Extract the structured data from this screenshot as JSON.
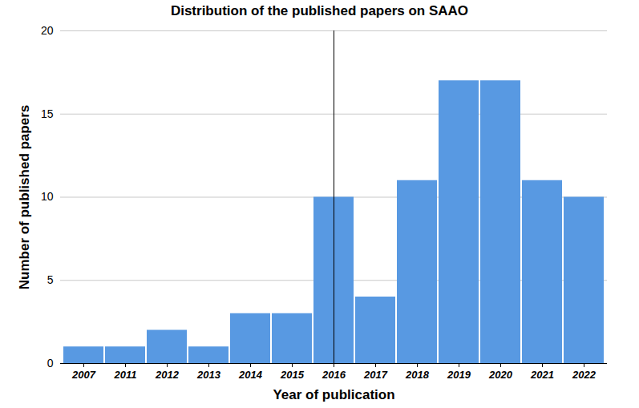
{
  "chart_data": {
    "type": "bar",
    "title": "Distribution of the published papers on SAAO",
    "x_label": "Year of publication",
    "y_label": "Number of published papers",
    "categories": [
      "2007",
      "2011",
      "2012",
      "2013",
      "2014",
      "2015",
      "2016",
      "2017",
      "2018",
      "2019",
      "2020",
      "2021",
      "2022"
    ],
    "values": [
      1,
      1,
      2,
      1,
      3,
      3,
      10,
      4,
      11,
      17,
      17,
      11,
      10
    ],
    "color": "#5899e2",
    "ylim": [
      0,
      20
    ],
    "yticks": [
      0,
      5,
      10,
      15,
      20
    ],
    "grid": true
  }
}
